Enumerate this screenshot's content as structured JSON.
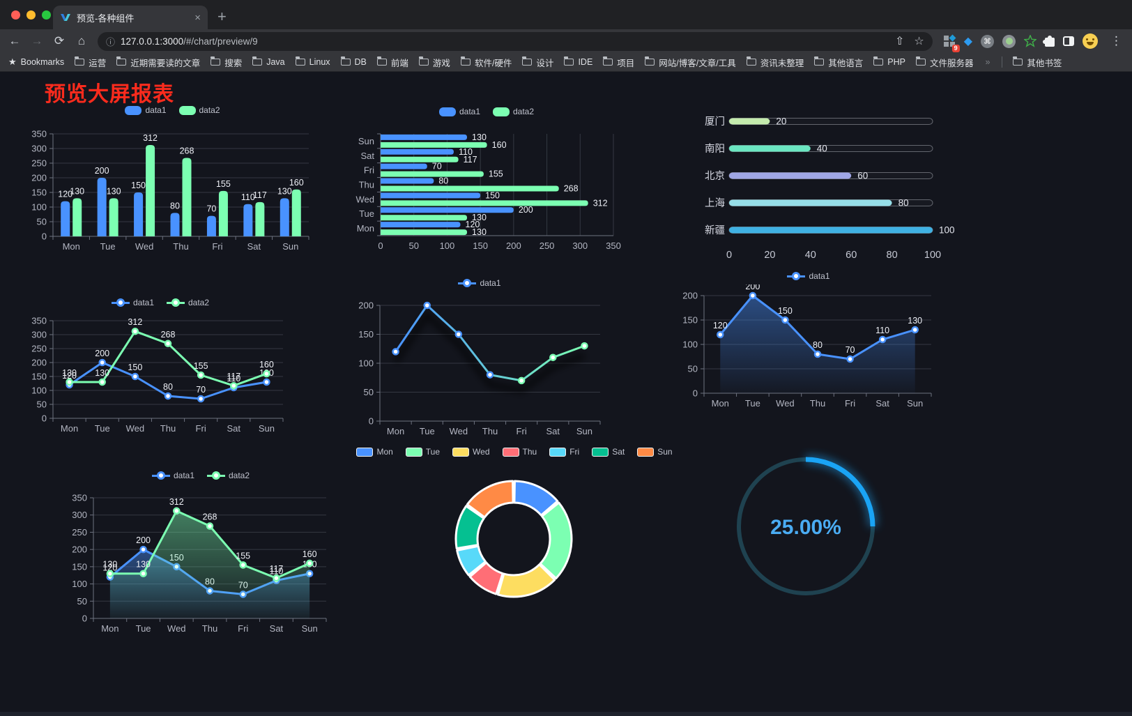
{
  "browser": {
    "traffic_lights": [
      "#ff5f57",
      "#febc2e",
      "#28c840"
    ],
    "tab": {
      "title": "预览-各种组件",
      "close_label": "×",
      "new_tab_label": "+"
    },
    "address": {
      "host": "127.0.0.1:3000",
      "path": "/#/chart/preview/9"
    },
    "icons": {
      "back": "←",
      "forward": "→",
      "reload": "⟳",
      "home": "⌂",
      "info": "ⓘ",
      "share": "⇧",
      "star": "☆",
      "command": "⌘",
      "menu": "⋮",
      "bookmarks_star": "★",
      "overflow": "»"
    },
    "extension_badge": "9",
    "bookmarks_label": "Bookmarks",
    "bookmarks": [
      "运营",
      "近期需要读的文章",
      "搜索",
      "Java",
      "Linux",
      "DB",
      "前端",
      "游戏",
      "软件/硬件",
      "设计",
      "IDE",
      "项目",
      "网站/博客/文章/工具",
      "资讯未整理",
      "其他语言",
      "PHP",
      "文件服务器"
    ],
    "other_bookmarks": "其他书签"
  },
  "page": {
    "title": "预览大屏报表"
  },
  "chart_data": [
    {
      "type": "bar",
      "title": "",
      "categories": [
        "Mon",
        "Tue",
        "Wed",
        "Thu",
        "Fri",
        "Sat",
        "Sun"
      ],
      "series": [
        {
          "name": "data1",
          "color": "#4992ff",
          "values": [
            120,
            200,
            150,
            80,
            70,
            110,
            130
          ]
        },
        {
          "name": "data2",
          "color": "#7cffb2",
          "values": [
            130,
            130,
            312,
            268,
            155,
            117,
            160
          ]
        }
      ],
      "ylim": [
        0,
        350
      ],
      "ytick": 50,
      "show_labels": true,
      "legend": true,
      "grid": true
    },
    {
      "type": "hbar",
      "title": "",
      "categories": [
        "Mon",
        "Tue",
        "Wed",
        "Thu",
        "Fri",
        "Sat",
        "Sun"
      ],
      "series": [
        {
          "name": "data1",
          "color": "#4992ff",
          "values": [
            120,
            200,
            150,
            80,
            70,
            110,
            130
          ]
        },
        {
          "name": "data2",
          "color": "#7cffb2",
          "values": [
            130,
            130,
            312,
            268,
            155,
            117,
            160
          ]
        }
      ],
      "xlim": [
        0,
        350
      ],
      "xtick": 50,
      "show_labels": true,
      "legend": true,
      "grid": true,
      "category_order_note": "Mon at bottom, Sun at top"
    },
    {
      "type": "progress",
      "title": "",
      "max": 100,
      "xticks": [
        0,
        20,
        40,
        60,
        80,
        100
      ],
      "items": [
        {
          "label": "厦门",
          "value": 20,
          "color": "#c4ebad"
        },
        {
          "label": "南阳",
          "value": 40,
          "color": "#6be6c1"
        },
        {
          "label": "北京",
          "value": 60,
          "color": "#a0a7e6"
        },
        {
          "label": "上海",
          "value": 80,
          "color": "#96dee8"
        },
        {
          "label": "新疆",
          "value": 100,
          "color": "#3fb1e3"
        }
      ]
    },
    {
      "type": "line",
      "title": "",
      "categories": [
        "Mon",
        "Tue",
        "Wed",
        "Thu",
        "Fri",
        "Sat",
        "Sun"
      ],
      "series": [
        {
          "name": "data1",
          "color": "#4992ff",
          "values": [
            120,
            200,
            150,
            80,
            70,
            110,
            130
          ]
        },
        {
          "name": "data2",
          "color": "#7cffb2",
          "values": [
            130,
            130,
            312,
            268,
            155,
            117,
            160
          ]
        }
      ],
      "ylim": [
        0,
        350
      ],
      "ytick": 50,
      "show_labels": true,
      "legend": true,
      "grid": true
    },
    {
      "type": "line",
      "title": "",
      "categories": [
        "Mon",
        "Tue",
        "Wed",
        "Thu",
        "Fri",
        "Sat",
        "Sun"
      ],
      "series": [
        {
          "name": "data1",
          "color": "#4992ff",
          "gradient_to": "#7cffb2",
          "shadow": true,
          "values": [
            120,
            200,
            150,
            80,
            70,
            110,
            130
          ]
        }
      ],
      "ylim": [
        0,
        200
      ],
      "ytick": 50,
      "show_labels": false,
      "legend": true,
      "grid": true
    },
    {
      "type": "line",
      "title": "",
      "categories": [
        "Mon",
        "Tue",
        "Wed",
        "Thu",
        "Fri",
        "Sat",
        "Sun"
      ],
      "series": [
        {
          "name": "data1",
          "color": "#4992ff",
          "area": true,
          "values": [
            120,
            200,
            150,
            80,
            70,
            110,
            130
          ]
        }
      ],
      "ylim": [
        0,
        200
      ],
      "ytick": 50,
      "show_labels": true,
      "legend": true,
      "grid": true
    },
    {
      "type": "line",
      "title": "",
      "categories": [
        "Mon",
        "Tue",
        "Wed",
        "Thu",
        "Fri",
        "Sat",
        "Sun"
      ],
      "series": [
        {
          "name": "data1",
          "color": "#4992ff",
          "area": true,
          "values": [
            120,
            200,
            150,
            80,
            70,
            110,
            130
          ]
        },
        {
          "name": "data2",
          "color": "#7cffb2",
          "area": true,
          "values": [
            130,
            130,
            312,
            268,
            155,
            117,
            160
          ]
        }
      ],
      "ylim": [
        0,
        350
      ],
      "ytick": 50,
      "show_labels": true,
      "legend": true,
      "grid": true
    },
    {
      "type": "donut",
      "title": "",
      "legend": true,
      "items": [
        {
          "label": "Mon",
          "value": 120,
          "color": "#4992ff"
        },
        {
          "label": "Tue",
          "value": 200,
          "color": "#7cffb2"
        },
        {
          "label": "Wed",
          "value": 150,
          "color": "#fddd60"
        },
        {
          "label": "Thu",
          "value": 80,
          "color": "#ff6e76"
        },
        {
          "label": "Fri",
          "value": 70,
          "color": "#58d9f9"
        },
        {
          "label": "Sat",
          "value": 110,
          "color": "#05c091"
        },
        {
          "label": "Sun",
          "value": 130,
          "color": "#ff8a45"
        }
      ]
    },
    {
      "type": "gauge",
      "title": "",
      "value": 25,
      "max": 100,
      "label": "25.00%",
      "color": "#1aa4f5",
      "track_color": "#1f4250",
      "text_color": "#4aacf3"
    }
  ]
}
